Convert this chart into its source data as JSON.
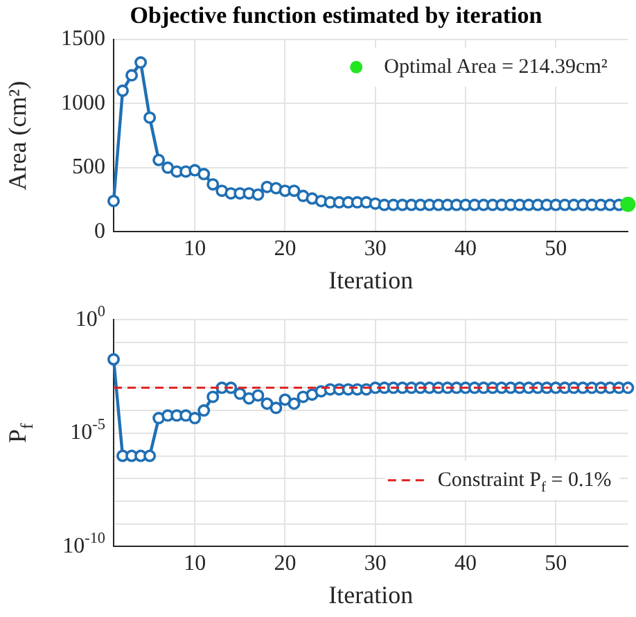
{
  "chart_data": [
    {
      "type": "line",
      "title": "Objective function estimated by iteration",
      "xlabel": "Iteration",
      "ylabel": "Area (cm²)",
      "x": [
        1,
        2,
        3,
        4,
        5,
        6,
        7,
        8,
        9,
        10,
        11,
        12,
        13,
        14,
        15,
        16,
        17,
        18,
        19,
        20,
        21,
        22,
        23,
        24,
        25,
        26,
        27,
        28,
        29,
        30,
        31,
        32,
        33,
        34,
        35,
        36,
        37,
        38,
        39,
        40,
        41,
        42,
        43,
        44,
        45,
        46,
        47,
        48,
        49,
        50,
        51,
        52,
        53,
        54,
        55,
        56,
        57,
        58
      ],
      "series": [
        {
          "color": "#1f6fb4",
          "values": [
            240,
            1100,
            1220,
            1320,
            890,
            560,
            500,
            470,
            470,
            480,
            450,
            370,
            320,
            300,
            300,
            300,
            290,
            350,
            340,
            320,
            320,
            280,
            260,
            240,
            230,
            230,
            230,
            230,
            230,
            220,
            210,
            210,
            210,
            210,
            210,
            210,
            210,
            210,
            210,
            210,
            210,
            210,
            210,
            210,
            210,
            210,
            210,
            210,
            210,
            210,
            210,
            210,
            210,
            210,
            210,
            210,
            210,
            210
          ]
        },
        {
          "type": "scatter",
          "name": "Optimal Area = 214.39cm²",
          "color": "#22e622",
          "x": [
            58
          ],
          "values": [
            214.39
          ]
        }
      ],
      "xlim": [
        1,
        58
      ],
      "xticks": [
        10,
        20,
        30,
        40,
        50
      ],
      "ylim": [
        0,
        1500
      ],
      "yticks": [
        0,
        500,
        1000,
        1500
      ],
      "grid": true,
      "legend": "top right",
      "marker": "circle",
      "line_style": "solid"
    },
    {
      "type": "line",
      "xlabel": "Iteration",
      "ylabel": "P$_{f}$",
      "log": "y",
      "x": [
        1,
        2,
        3,
        4,
        5,
        6,
        7,
        8,
        9,
        10,
        11,
        12,
        13,
        14,
        15,
        16,
        17,
        18,
        19,
        20,
        21,
        22,
        23,
        24,
        25,
        26,
        27,
        28,
        29,
        30,
        31,
        32,
        33,
        34,
        35,
        36,
        37,
        38,
        39,
        40,
        41,
        42,
        43,
        44,
        45,
        46,
        47,
        48,
        49,
        50,
        51,
        52,
        53,
        54,
        55,
        56,
        57,
        58
      ],
      "series": [
        {
          "color": "#1f6fb4",
          "values": [
            0.018,
            1e-06,
            1e-06,
            1e-06,
            1e-06,
            4.6e-05,
            6e-05,
            6e-05,
            6e-05,
            4.6e-05,
            0.0001,
            0.0004,
            0.001,
            0.001,
            0.00055,
            0.00034,
            0.00046,
            0.0002,
            0.00013,
            0.0003,
            0.0002,
            0.0004,
            0.0005,
            0.0007,
            0.00085,
            0.00085,
            0.00085,
            0.00085,
            0.00085,
            0.001,
            0.001,
            0.001,
            0.001,
            0.001,
            0.001,
            0.001,
            0.001,
            0.001,
            0.001,
            0.001,
            0.001,
            0.001,
            0.001,
            0.001,
            0.001,
            0.001,
            0.001,
            0.001,
            0.001,
            0.001,
            0.001,
            0.001,
            0.001,
            0.001,
            0.001,
            0.001,
            0.001,
            0.001
          ]
        }
      ],
      "ref_lines": [
        {
          "axis": "y",
          "value": 0.001,
          "label": "Constraint P$_{f}$ = 0.1%",
          "color": "#e02020",
          "line_style": "dashed"
        }
      ],
      "xlim": [
        1,
        58
      ],
      "xticks": [
        10,
        20,
        30,
        40,
        50
      ],
      "ylim": [
        1e-10,
        1
      ],
      "yticks": [
        {
          "value": 1e-10,
          "label": "10$^{-10}$"
        },
        {
          "value": 1e-09,
          "label": null
        },
        {
          "value": 1e-08,
          "label": null
        },
        {
          "value": 1e-07,
          "label": null
        },
        {
          "value": 1e-06,
          "label": null
        },
        {
          "value": 1e-05,
          "label": "10$^{-5}$"
        },
        {
          "value": 0.0001,
          "label": null
        },
        {
          "value": 0.001,
          "label": null
        },
        {
          "value": 0.01,
          "label": null
        },
        {
          "value": 0.1,
          "label": null
        },
        {
          "value": 1,
          "label": "10$^{0}$"
        }
      ],
      "grid": true,
      "legend": "right",
      "marker": "circle",
      "line_style": "solid"
    }
  ]
}
